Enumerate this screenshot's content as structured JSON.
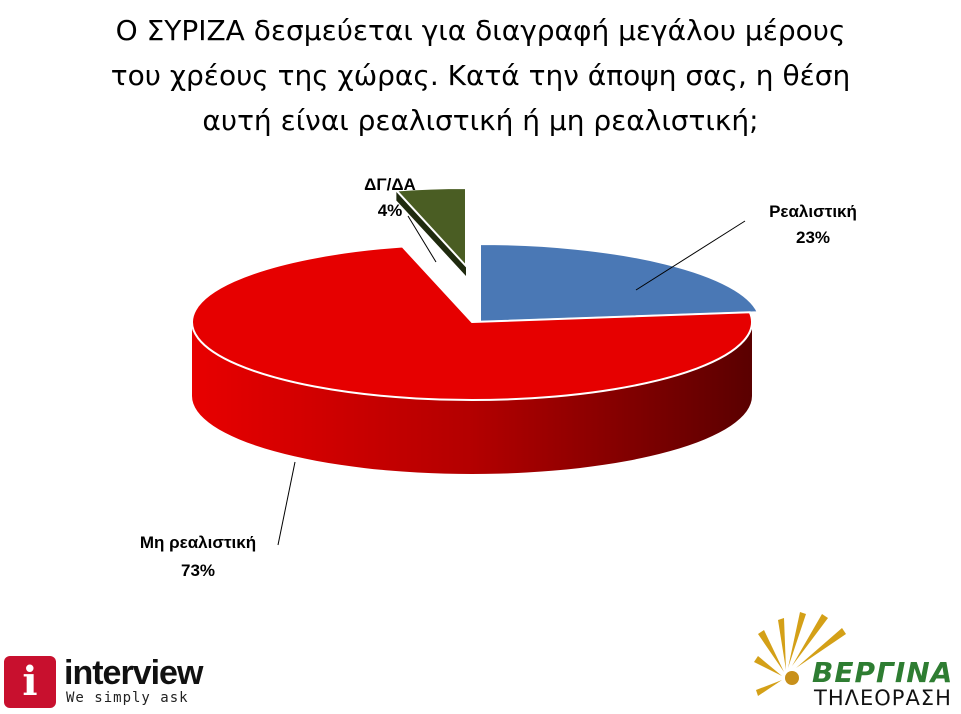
{
  "title_lines": [
    "Ο ΣΥΡΙΖΑ δεσμεύεται για διαγραφή μεγάλου μέρους",
    "του χρέους της χώρας. Κατά την άποψη σας, η θέση",
    "αυτή είναι ρεαλιστική ή μη ρεαλιστική;"
  ],
  "chart_data": {
    "type": "pie",
    "style": "3d",
    "slices": [
      {
        "label": "Ρεαλιστική",
        "value": 23,
        "value_label": "23%",
        "color": "#4a78b5"
      },
      {
        "label": "Μη ρεαλιστική",
        "value": 73,
        "value_label": "73%",
        "color": "#e60000"
      },
      {
        "label": "ΔΓ/ΔΑ",
        "value": 4,
        "value_label": "4%",
        "color": "#4a5d23"
      }
    ]
  },
  "logo_left": {
    "name": "interview",
    "tagline": "We simply ask"
  },
  "logo_right": {
    "name": "ΒΕΡΓΙΝΑ",
    "subtitle": "ΤΗΛΕΟΡΑΣΗ"
  }
}
